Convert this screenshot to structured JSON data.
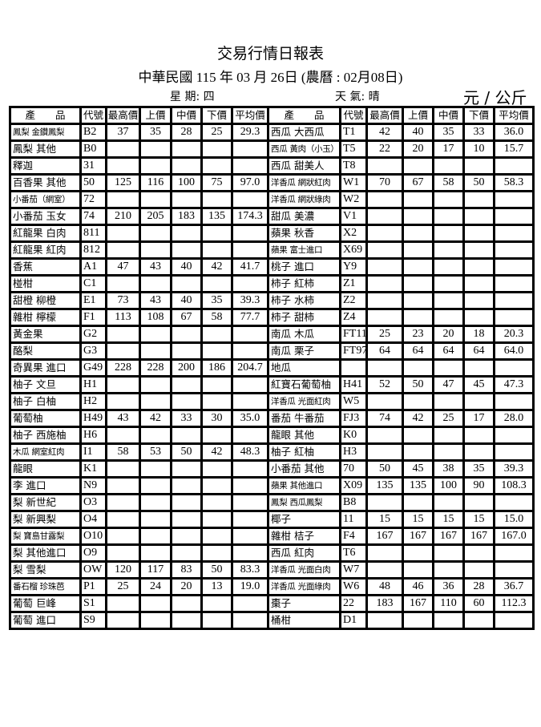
{
  "report": {
    "title": "交易行情日報表",
    "date_line": "中華民國 115 年 03 月 26日  (農曆 : 02月08日)",
    "weekday": "星 期:  四",
    "weather": "天 氣:   晴",
    "unit": "元 / 公斤"
  },
  "table": {
    "headers": [
      "產　　品",
      "代號",
      "最高價",
      "上價",
      "中價",
      "下價",
      "平均價",
      "產　　品",
      "代號",
      "最高價",
      "上價",
      "中價",
      "下價",
      "平均價"
    ],
    "left_rows": [
      [
        "鳳梨 金鑽鳳梨",
        "B2",
        "37",
        "35",
        "28",
        "25",
        "29.3"
      ],
      [
        "鳳梨 其他",
        "B0",
        "",
        "",
        "",
        "",
        ""
      ],
      [
        "釋迦",
        "31",
        "",
        "",
        "",
        "",
        ""
      ],
      [
        "百香果 其他",
        "50",
        "125",
        "116",
        "100",
        "75",
        "97.0"
      ],
      [
        "小番茄（網室）",
        "72",
        "",
        "",
        "",
        "",
        ""
      ],
      [
        "小番茄 玉女",
        "74",
        "210",
        "205",
        "183",
        "135",
        "174.3"
      ],
      [
        "紅龍果 白肉",
        "811",
        "",
        "",
        "",
        "",
        ""
      ],
      [
        "紅龍果 紅肉",
        "812",
        "",
        "",
        "",
        "",
        ""
      ],
      [
        "香蕉",
        "A1",
        "47",
        "43",
        "40",
        "42",
        "41.7"
      ],
      [
        "椪柑",
        "C1",
        "",
        "",
        "",
        "",
        ""
      ],
      [
        "甜橙 柳橙",
        "E1",
        "73",
        "43",
        "40",
        "35",
        "39.3"
      ],
      [
        "雜柑 檸檬",
        "F1",
        "113",
        "108",
        "67",
        "58",
        "77.7"
      ],
      [
        "黃金果",
        "G2",
        "",
        "",
        "",
        "",
        ""
      ],
      [
        "酪梨",
        "G3",
        "",
        "",
        "",
        "",
        ""
      ],
      [
        "奇異果 進口",
        "G49",
        "228",
        "228",
        "200",
        "186",
        "204.7"
      ],
      [
        "柚子 文旦",
        "H1",
        "",
        "",
        "",
        "",
        ""
      ],
      [
        "柚子 白柚",
        "H2",
        "",
        "",
        "",
        "",
        ""
      ],
      [
        "葡萄柚",
        "H49",
        "43",
        "42",
        "33",
        "30",
        "35.0"
      ],
      [
        "柚子 西施柚",
        "H6",
        "",
        "",
        "",
        "",
        ""
      ],
      [
        "木瓜 網室紅肉",
        "I1",
        "58",
        "53",
        "50",
        "42",
        "48.3"
      ],
      [
        "龍眼",
        "K1",
        "",
        "",
        "",
        "",
        ""
      ],
      [
        "李 進口",
        "N9",
        "",
        "",
        "",
        "",
        ""
      ],
      [
        "梨 新世紀",
        "O3",
        "",
        "",
        "",
        "",
        ""
      ],
      [
        "梨 新興梨",
        "O4",
        "",
        "",
        "",
        "",
        ""
      ],
      [
        "梨 寶島甘露梨",
        "O10",
        "",
        "",
        "",
        "",
        ""
      ],
      [
        "梨 其他進口",
        "O9",
        "",
        "",
        "",
        "",
        ""
      ],
      [
        "梨 雪梨",
        "OW",
        "120",
        "117",
        "83",
        "50",
        "83.3"
      ],
      [
        "番石榴 珍珠芭",
        "P1",
        "25",
        "24",
        "20",
        "13",
        "19.0"
      ],
      [
        "葡萄 巨峰",
        "S1",
        "",
        "",
        "",
        "",
        ""
      ],
      [
        "葡萄 進口",
        "S9",
        "",
        "",
        "",
        "",
        ""
      ]
    ],
    "right_rows": [
      [
        "西瓜 大西瓜",
        "T1",
        "42",
        "40",
        "35",
        "33",
        "36.0"
      ],
      [
        "西瓜 黃肉（小玉）",
        "T5",
        "22",
        "20",
        "17",
        "10",
        "15.7"
      ],
      [
        "西瓜 甜美人",
        "T8",
        "",
        "",
        "",
        "",
        ""
      ],
      [
        "洋香瓜 網狀紅肉",
        "W1",
        "70",
        "67",
        "58",
        "50",
        "58.3"
      ],
      [
        "洋香瓜 網狀綠肉",
        "W2",
        "",
        "",
        "",
        "",
        ""
      ],
      [
        "甜瓜 美濃",
        "V1",
        "",
        "",
        "",
        "",
        ""
      ],
      [
        "蘋果 秋香",
        "X2",
        "",
        "",
        "",
        "",
        ""
      ],
      [
        "蘋果 富士進口",
        "X69",
        "",
        "",
        "",
        "",
        ""
      ],
      [
        "桃子 進口",
        "Y9",
        "",
        "",
        "",
        "",
        ""
      ],
      [
        "柿子 紅柿",
        "Z1",
        "",
        "",
        "",
        "",
        ""
      ],
      [
        "柿子 水柿",
        "Z2",
        "",
        "",
        "",
        "",
        ""
      ],
      [
        "柿子 甜柿",
        "Z4",
        "",
        "",
        "",
        "",
        ""
      ],
      [
        "南瓜  木瓜",
        "FT11",
        "25",
        "23",
        "20",
        "18",
        "20.3"
      ],
      [
        "南瓜  栗子",
        "FT97",
        "64",
        "64",
        "64",
        "64",
        "64.0"
      ],
      [
        "地瓜",
        "",
        "",
        "",
        "",
        "",
        ""
      ],
      [
        "紅寶石葡萄柚",
        "H41",
        "52",
        "50",
        "47",
        "45",
        "47.3"
      ],
      [
        "洋香瓜 光面紅肉",
        "W5",
        "",
        "",
        "",
        "",
        ""
      ],
      [
        "番茄 牛番茄",
        "FJ3",
        "74",
        "42",
        "25",
        "17",
        "28.0"
      ],
      [
        "龍眼 其他",
        "K0",
        "",
        "",
        "",
        "",
        ""
      ],
      [
        "柚子 紅柚",
        "H3",
        "",
        "",
        "",
        "",
        ""
      ],
      [
        "小番茄 其他",
        "70",
        "50",
        "45",
        "38",
        "35",
        "39.3"
      ],
      [
        "蘋果 其他進口",
        "X09",
        "135",
        "135",
        "100",
        "90",
        "108.3"
      ],
      [
        "鳳梨 西瓜鳳梨",
        "B8",
        "",
        "",
        "",
        "",
        ""
      ],
      [
        "椰子",
        "11",
        "15",
        "15",
        "15",
        "15",
        "15.0"
      ],
      [
        "雜柑 桔子",
        "F4",
        "167",
        "167",
        "167",
        "167",
        "167.0"
      ],
      [
        "西瓜 紅肉",
        "T6",
        "",
        "",
        "",
        "",
        ""
      ],
      [
        "洋香瓜 光面白肉",
        "W7",
        "",
        "",
        "",
        "",
        ""
      ],
      [
        "洋香瓜 光面綠肉",
        "W6",
        "48",
        "46",
        "36",
        "28",
        "36.7"
      ],
      [
        "棗子",
        "22",
        "183",
        "167",
        "110",
        "60",
        "112.3"
      ],
      [
        "桶柑",
        "D1",
        "",
        "",
        "",
        "",
        ""
      ]
    ]
  }
}
